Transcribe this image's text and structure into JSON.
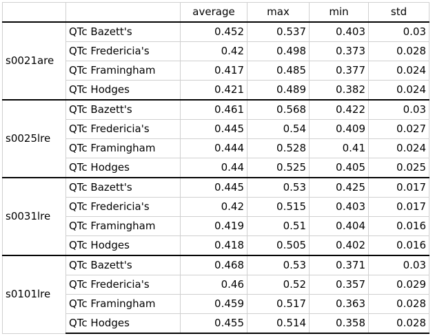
{
  "headers": {
    "corner": "",
    "method": "",
    "average": "average",
    "max": "max",
    "min": "min",
    "std": "std"
  },
  "groups": [
    {
      "id": "s0021are",
      "rows": [
        {
          "method": "QTc Bazett's",
          "average": "0.452",
          "max": "0.537",
          "min": "0.403",
          "std": "0.03"
        },
        {
          "method": "QTc Fredericia's",
          "average": "0.42",
          "max": "0.498",
          "min": "0.373",
          "std": "0.028"
        },
        {
          "method": "QTc Framingham",
          "average": "0.417",
          "max": "0.485",
          "min": "0.377",
          "std": "0.024"
        },
        {
          "method": "QTc Hodges",
          "average": "0.421",
          "max": "0.489",
          "min": "0.382",
          "std": "0.024"
        }
      ]
    },
    {
      "id": "s0025lre",
      "rows": [
        {
          "method": "QTc Bazett's",
          "average": "0.461",
          "max": "0.568",
          "min": "0.422",
          "std": "0.03"
        },
        {
          "method": "QTc Fredericia's",
          "average": "0.445",
          "max": "0.54",
          "min": "0.409",
          "std": "0.027"
        },
        {
          "method": "QTc Framingham",
          "average": "0.444",
          "max": "0.528",
          "min": "0.41",
          "std": "0.024"
        },
        {
          "method": "QTc Hodges",
          "average": "0.44",
          "max": "0.525",
          "min": "0.405",
          "std": "0.025"
        }
      ]
    },
    {
      "id": "s0031lre",
      "rows": [
        {
          "method": "QTc Bazett's",
          "average": "0.445",
          "max": "0.53",
          "min": "0.425",
          "std": "0.017"
        },
        {
          "method": "QTc Fredericia's",
          "average": "0.42",
          "max": "0.515",
          "min": "0.403",
          "std": "0.017"
        },
        {
          "method": "QTc Framingham",
          "average": "0.419",
          "max": "0.51",
          "min": "0.404",
          "std": "0.016"
        },
        {
          "method": "QTc Hodges",
          "average": "0.418",
          "max": "0.505",
          "min": "0.402",
          "std": "0.016"
        }
      ]
    },
    {
      "id": "s0101lre",
      "rows": [
        {
          "method": "QTc Bazett's",
          "average": "0.468",
          "max": "0.53",
          "min": "0.371",
          "std": "0.03"
        },
        {
          "method": "QTc Fredericia's",
          "average": "0.46",
          "max": "0.52",
          "min": "0.357",
          "std": "0.029"
        },
        {
          "method": "QTc Framingham",
          "average": "0.459",
          "max": "0.517",
          "min": "0.363",
          "std": "0.028"
        },
        {
          "method": "QTc Hodges",
          "average": "0.455",
          "max": "0.514",
          "min": "0.358",
          "std": "0.028"
        }
      ]
    }
  ],
  "colors": {
    "gridline": "#cfcfcf",
    "group_border": "#000000",
    "background": "#ffffff",
    "text": "#000000"
  }
}
